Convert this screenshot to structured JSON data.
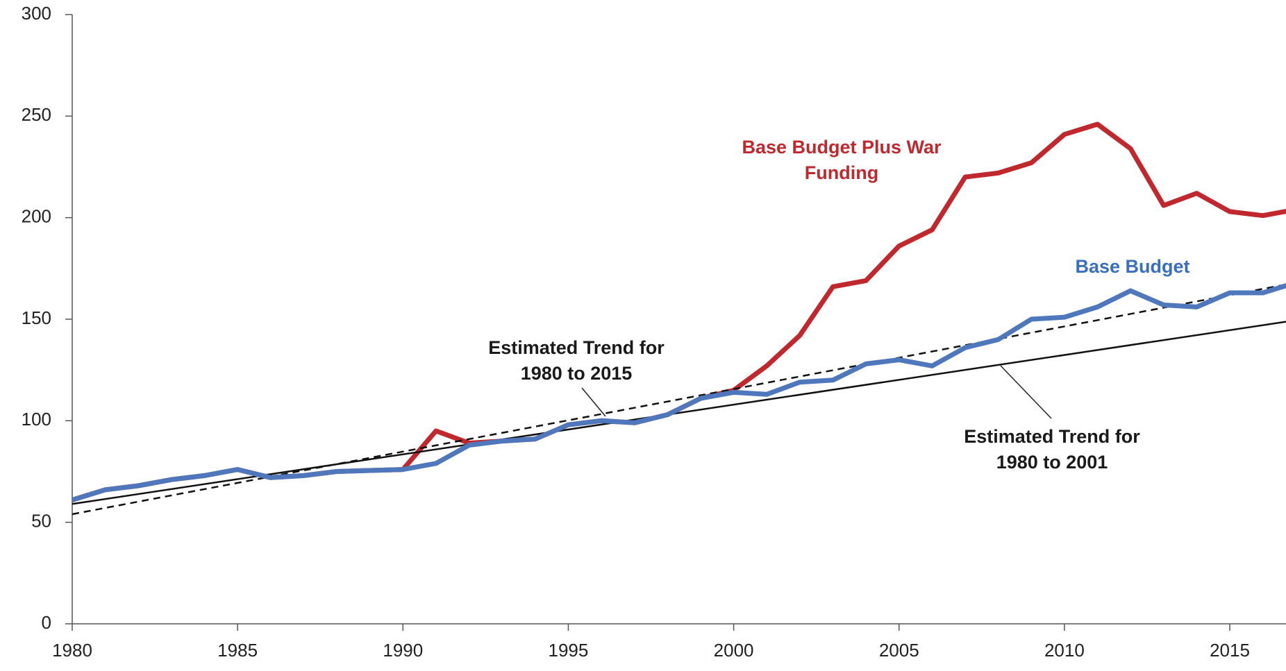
{
  "chart_data": {
    "type": "line",
    "xlim": [
      1980,
      2016.7
    ],
    "xticks": [
      1980,
      1985,
      1990,
      1995,
      2000,
      2005,
      2010,
      2015
    ],
    "ylim": [
      0,
      300
    ],
    "yticks": [
      0,
      50,
      100,
      150,
      200,
      250,
      300
    ],
    "series": [
      {
        "name": "Base Budget Plus War Funding",
        "color": "#c0282d",
        "style": "solid",
        "width": 7,
        "x": [
          1980,
          1981,
          1982,
          1983,
          1984,
          1985,
          1986,
          1987,
          1988,
          1989,
          1990,
          1991,
          1992,
          1993,
          1994,
          1995,
          1996,
          1997,
          1998,
          1999,
          2000,
          2001,
          2002,
          2003,
          2004,
          2005,
          2006,
          2007,
          2008,
          2009,
          2010,
          2011,
          2012,
          2013,
          2014,
          2015,
          2016,
          2017
        ],
        "values": [
          61,
          66,
          68,
          71,
          73,
          76,
          72,
          73,
          75,
          75.5,
          76,
          95,
          89,
          90,
          91,
          98,
          100,
          99,
          103,
          111,
          115,
          127,
          142,
          166,
          169,
          186,
          194,
          220,
          222,
          227,
          241,
          246,
          234,
          206,
          212,
          203,
          201,
          204
        ]
      },
      {
        "name": "Base Budget",
        "color": "#4f78bc",
        "style": "solid",
        "width": 7,
        "x": [
          1980,
          1981,
          1982,
          1983,
          1984,
          1985,
          1986,
          1987,
          1988,
          1989,
          1990,
          1991,
          1992,
          1993,
          1994,
          1995,
          1996,
          1997,
          1998,
          1999,
          2000,
          2001,
          2002,
          2003,
          2004,
          2005,
          2006,
          2007,
          2008,
          2009,
          2010,
          2011,
          2012,
          2013,
          2014,
          2015,
          2016,
          2017
        ],
        "values": [
          61,
          66,
          68,
          71,
          73,
          76,
          72,
          73,
          75,
          75.5,
          76,
          79,
          88,
          90,
          91,
          98,
          100,
          99,
          103,
          111,
          114,
          113,
          119,
          120,
          128,
          130,
          127,
          136,
          140,
          150,
          151,
          156,
          164,
          157,
          156,
          163,
          163,
          168
        ]
      },
      {
        "name": "Estimated Trend for 1980 to 2015",
        "color": "#111111",
        "style": "dashed",
        "width": 2.5,
        "x": [
          1980,
          2017
        ],
        "values": [
          54,
          168
        ]
      },
      {
        "name": "Estimated Trend for 1980 to 2001",
        "color": "#111111",
        "style": "solid",
        "width": 2.5,
        "x": [
          1980,
          2017
        ],
        "values": [
          59,
          149.5
        ]
      }
    ],
    "annotations": [
      {
        "lines": [
          "Base Budget Plus War",
          "Funding"
        ],
        "color": "#c0282d"
      },
      {
        "lines": [
          "Base Budget"
        ],
        "color": "#3a6fc0"
      },
      {
        "lines": [
          "Estimated Trend for",
          "1980 to 2015"
        ],
        "color": "#1a1a1a"
      },
      {
        "lines": [
          "Estimated Trend for",
          "1980 to 2001"
        ],
        "color": "#1a1a1a"
      }
    ]
  }
}
